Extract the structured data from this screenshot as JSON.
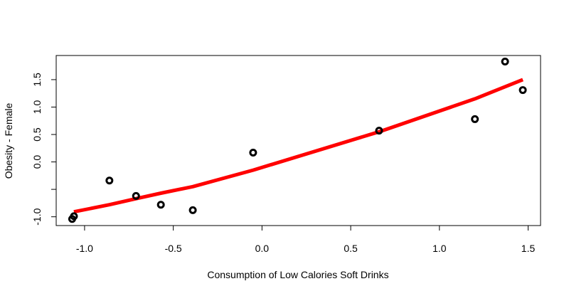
{
  "chart_data": {
    "type": "scatter",
    "title": "",
    "xlabel": "Consumption of Low Calories Soft Drinks",
    "ylabel": "Obesity - Female",
    "xlim": [
      -1.16,
      1.57
    ],
    "ylim": [
      -1.16,
      1.94
    ],
    "x_ticks": [
      -1.0,
      -0.5,
      0.0,
      0.5,
      1.0,
      1.5
    ],
    "x_tick_labels": [
      "-1.0",
      "-0.5",
      "0.0",
      "0.5",
      "1.0",
      "1.5"
    ],
    "y_ticks": [
      -1.0,
      -0.5,
      0.0,
      0.5,
      1.0,
      1.5
    ],
    "y_tick_labels": [
      "-1.0",
      "",
      "0.0",
      "0.5",
      "1.0",
      "1.5"
    ],
    "grid": false,
    "series": [
      {
        "type": "scatter",
        "color": "#000000",
        "points": [
          {
            "x": -1.07,
            "y": -1.04
          },
          {
            "x": -1.06,
            "y": -0.99
          },
          {
            "x": -0.86,
            "y": -0.34
          },
          {
            "x": -0.71,
            "y": -0.62
          },
          {
            "x": -0.57,
            "y": -0.78
          },
          {
            "x": -0.39,
            "y": -0.88
          },
          {
            "x": -0.05,
            "y": 0.17
          },
          {
            "x": 0.66,
            "y": 0.57
          },
          {
            "x": 1.2,
            "y": 0.78
          },
          {
            "x": 1.37,
            "y": 1.83
          },
          {
            "x": 1.47,
            "y": 1.31
          }
        ]
      },
      {
        "type": "line",
        "color": "#ff0000",
        "points": [
          {
            "x": -1.06,
            "y": -0.91
          },
          {
            "x": -0.86,
            "y": -0.78
          },
          {
            "x": -0.71,
            "y": -0.67
          },
          {
            "x": -0.57,
            "y": -0.57
          },
          {
            "x": -0.39,
            "y": -0.45
          },
          {
            "x": -0.05,
            "y": -0.15
          },
          {
            "x": 0.66,
            "y": 0.55
          },
          {
            "x": 1.2,
            "y": 1.15
          },
          {
            "x": 1.47,
            "y": 1.5
          }
        ]
      }
    ]
  }
}
